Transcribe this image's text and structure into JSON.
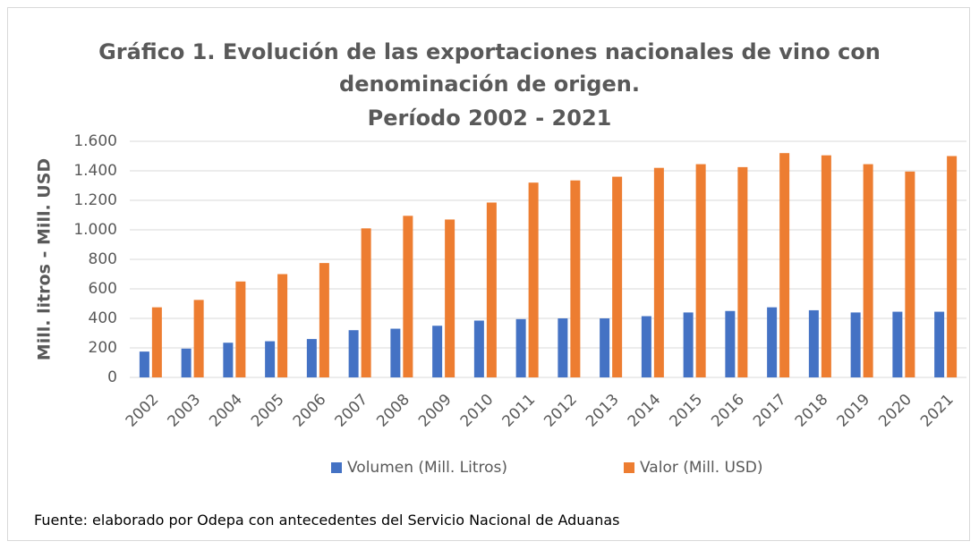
{
  "chart_data": {
    "type": "bar",
    "title": "Gráfico 1. Evolución de las exportaciones nacionales de vino con denominación de origen.",
    "subtitle": "Período 2002 - 2021",
    "y_label": "Mill. litros - Mill. USD",
    "categories": [
      "2002",
      "2003",
      "2004",
      "2005",
      "2006",
      "2007",
      "2008",
      "2009",
      "2010",
      "2011",
      "2012",
      "2013",
      "2014",
      "2015",
      "2016",
      "2017",
      "2018",
      "2019",
      "2020",
      "2021"
    ],
    "series": [
      {
        "name": "Volumen (Mill. Litros)",
        "color": "#4472c4",
        "values": [
          175,
          195,
          235,
          245,
          260,
          320,
          330,
          350,
          385,
          395,
          400,
          400,
          415,
          440,
          450,
          475,
          455,
          440,
          445,
          445
        ]
      },
      {
        "name": "Valor (Mill. USD)",
        "color": "#ed7d31",
        "values": [
          475,
          525,
          650,
          700,
          775,
          1010,
          1095,
          1070,
          1185,
          1320,
          1335,
          1360,
          1420,
          1445,
          1425,
          1520,
          1505,
          1445,
          1395,
          1500
        ]
      }
    ],
    "ylim": [
      0,
      1600
    ],
    "yticks": [
      0,
      200,
      400,
      600,
      800,
      {
        "value": 1000,
        "label": "1.000"
      },
      {
        "value": 1200,
        "label": "1.200"
      },
      {
        "value": 1400,
        "label": "1.400"
      },
      {
        "value": 1600,
        "label": "1.600"
      }
    ],
    "grid": true,
    "legend": "bottom",
    "source": "Fuente: elaborado por Odepa con antecedentes del Servicio Nacional de Aduanas"
  }
}
